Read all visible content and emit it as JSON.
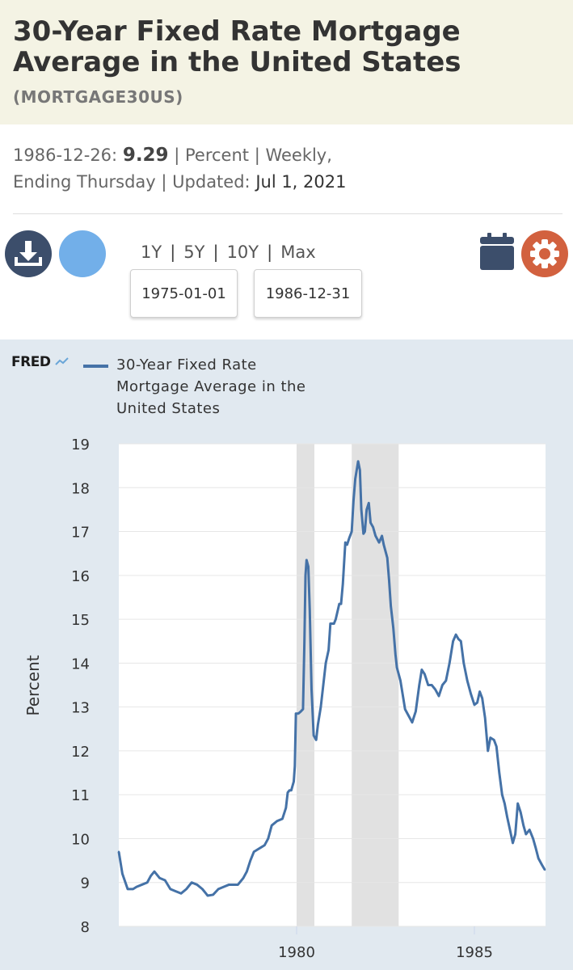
{
  "header": {
    "title": "30-Year Fixed Rate Mortgage Average in the United States",
    "series_id": "(MORTGAGE30US)"
  },
  "meta": {
    "date": "1986-12-26:",
    "value": "9.29",
    "sep1": "| Percent | Weekly,",
    "frequency_end": "Ending Thursday",
    "sep2": "| Updated:",
    "updated": "Jul 1, 2021"
  },
  "controls": {
    "ranges": [
      "1Y",
      "5Y",
      "10Y",
      "Max"
    ],
    "start_date": "1975-01-01",
    "end_date": "1986-12-31",
    "icons": {
      "download": "download-icon",
      "circle": "blank-circle-button",
      "calendar": "calendar-icon",
      "settings": "gear-icon"
    }
  },
  "logo": {
    "text": "FRED"
  },
  "colors": {
    "title_band": "#f4f3e4",
    "chart_bg": "#e1e9f0",
    "series": "#4572a7",
    "recession": "#e1e1e1",
    "download": "#3c4e6b",
    "settings": "#d2613f",
    "circle": "#72afe9"
  },
  "chart_data": {
    "type": "line",
    "ylabel": "Percent",
    "xlabel": "",
    "ylim": [
      8,
      19
    ],
    "xlim": [
      1975.0,
      1987.0
    ],
    "y_ticks": [
      "8",
      "9",
      "10",
      "11",
      "12",
      "13",
      "14",
      "15",
      "16",
      "17",
      "18",
      "19"
    ],
    "x_ticks": [
      {
        "value": 1980,
        "label": "1980"
      },
      {
        "value": 1985,
        "label": "1985"
      }
    ],
    "grid": true,
    "recessions": [
      [
        1980.0,
        1980.5
      ],
      [
        1981.55,
        1982.87
      ]
    ],
    "series": [
      {
        "name": "30-Year Fixed Rate Mortgage Average in the United States",
        "points": [
          [
            1975.0,
            9.7
          ],
          [
            1975.1,
            9.2
          ],
          [
            1975.25,
            8.85
          ],
          [
            1975.4,
            8.85
          ],
          [
            1975.5,
            8.9
          ],
          [
            1975.65,
            8.95
          ],
          [
            1975.8,
            9.0
          ],
          [
            1975.9,
            9.15
          ],
          [
            1976.0,
            9.25
          ],
          [
            1976.15,
            9.1
          ],
          [
            1976.3,
            9.05
          ],
          [
            1976.45,
            8.85
          ],
          [
            1976.6,
            8.8
          ],
          [
            1976.75,
            8.75
          ],
          [
            1976.9,
            8.85
          ],
          [
            1977.05,
            9.0
          ],
          [
            1977.2,
            8.95
          ],
          [
            1977.35,
            8.85
          ],
          [
            1977.5,
            8.7
          ],
          [
            1977.65,
            8.72
          ],
          [
            1977.8,
            8.85
          ],
          [
            1977.95,
            8.9
          ],
          [
            1978.1,
            8.95
          ],
          [
            1978.2,
            8.95
          ],
          [
            1978.35,
            8.95
          ],
          [
            1978.5,
            9.1
          ],
          [
            1978.6,
            9.25
          ],
          [
            1978.7,
            9.5
          ],
          [
            1978.8,
            9.7
          ],
          [
            1978.9,
            9.75
          ],
          [
            1979.0,
            9.8
          ],
          [
            1979.1,
            9.85
          ],
          [
            1979.2,
            10.0
          ],
          [
            1979.3,
            10.3
          ],
          [
            1979.45,
            10.4
          ],
          [
            1979.6,
            10.45
          ],
          [
            1979.7,
            10.7
          ],
          [
            1979.75,
            11.05
          ],
          [
            1979.8,
            11.1
          ],
          [
            1979.85,
            11.1
          ],
          [
            1979.92,
            11.3
          ],
          [
            1979.95,
            11.65
          ],
          [
            1979.98,
            12.85
          ],
          [
            1980.05,
            12.85
          ],
          [
            1980.12,
            12.9
          ],
          [
            1980.18,
            12.95
          ],
          [
            1980.22,
            14.5
          ],
          [
            1980.25,
            16.0
          ],
          [
            1980.28,
            16.35
          ],
          [
            1980.33,
            16.2
          ],
          [
            1980.37,
            15.2
          ],
          [
            1980.42,
            13.4
          ],
          [
            1980.48,
            12.35
          ],
          [
            1980.55,
            12.25
          ],
          [
            1980.6,
            12.6
          ],
          [
            1980.68,
            13.0
          ],
          [
            1980.75,
            13.5
          ],
          [
            1980.82,
            14.0
          ],
          [
            1980.9,
            14.3
          ],
          [
            1980.95,
            14.9
          ],
          [
            1981.05,
            14.9
          ],
          [
            1981.1,
            15.0
          ],
          [
            1981.2,
            15.35
          ],
          [
            1981.25,
            15.35
          ],
          [
            1981.3,
            15.8
          ],
          [
            1981.37,
            16.75
          ],
          [
            1981.42,
            16.7
          ],
          [
            1981.48,
            16.85
          ],
          [
            1981.55,
            17.0
          ],
          [
            1981.6,
            17.7
          ],
          [
            1981.65,
            18.2
          ],
          [
            1981.7,
            18.45
          ],
          [
            1981.73,
            18.6
          ],
          [
            1981.78,
            18.4
          ],
          [
            1981.82,
            17.5
          ],
          [
            1981.88,
            16.95
          ],
          [
            1981.92,
            17.0
          ],
          [
            1981.97,
            17.5
          ],
          [
            1982.03,
            17.65
          ],
          [
            1982.08,
            17.2
          ],
          [
            1982.15,
            17.1
          ],
          [
            1982.22,
            16.9
          ],
          [
            1982.32,
            16.75
          ],
          [
            1982.4,
            16.9
          ],
          [
            1982.45,
            16.7
          ],
          [
            1982.55,
            16.4
          ],
          [
            1982.6,
            15.9
          ],
          [
            1982.65,
            15.3
          ],
          [
            1982.72,
            14.8
          ],
          [
            1982.78,
            14.2
          ],
          [
            1982.82,
            13.9
          ],
          [
            1982.92,
            13.6
          ],
          [
            1983.0,
            13.2
          ],
          [
            1983.05,
            12.95
          ],
          [
            1983.15,
            12.8
          ],
          [
            1983.25,
            12.65
          ],
          [
            1983.35,
            12.9
          ],
          [
            1983.45,
            13.5
          ],
          [
            1983.52,
            13.85
          ],
          [
            1983.6,
            13.75
          ],
          [
            1983.7,
            13.5
          ],
          [
            1983.8,
            13.5
          ],
          [
            1983.9,
            13.4
          ],
          [
            1984.0,
            13.25
          ],
          [
            1984.1,
            13.5
          ],
          [
            1984.2,
            13.6
          ],
          [
            1984.3,
            14.0
          ],
          [
            1984.4,
            14.5
          ],
          [
            1984.48,
            14.65
          ],
          [
            1984.55,
            14.55
          ],
          [
            1984.62,
            14.5
          ],
          [
            1984.7,
            14.0
          ],
          [
            1984.8,
            13.6
          ],
          [
            1984.9,
            13.3
          ],
          [
            1985.0,
            13.05
          ],
          [
            1985.08,
            13.1
          ],
          [
            1985.15,
            13.35
          ],
          [
            1985.22,
            13.2
          ],
          [
            1985.3,
            12.75
          ],
          [
            1985.38,
            12.0
          ],
          [
            1985.45,
            12.3
          ],
          [
            1985.55,
            12.25
          ],
          [
            1985.62,
            12.1
          ],
          [
            1985.7,
            11.5
          ],
          [
            1985.78,
            11.0
          ],
          [
            1985.85,
            10.8
          ],
          [
            1985.92,
            10.5
          ],
          [
            1986.0,
            10.2
          ],
          [
            1986.08,
            9.9
          ],
          [
            1986.15,
            10.1
          ],
          [
            1986.22,
            10.8
          ],
          [
            1986.3,
            10.6
          ],
          [
            1986.38,
            10.3
          ],
          [
            1986.45,
            10.1
          ],
          [
            1986.55,
            10.2
          ],
          [
            1986.65,
            10.0
          ],
          [
            1986.72,
            9.8
          ],
          [
            1986.8,
            9.55
          ],
          [
            1986.9,
            9.4
          ],
          [
            1986.98,
            9.29
          ]
        ]
      }
    ]
  }
}
